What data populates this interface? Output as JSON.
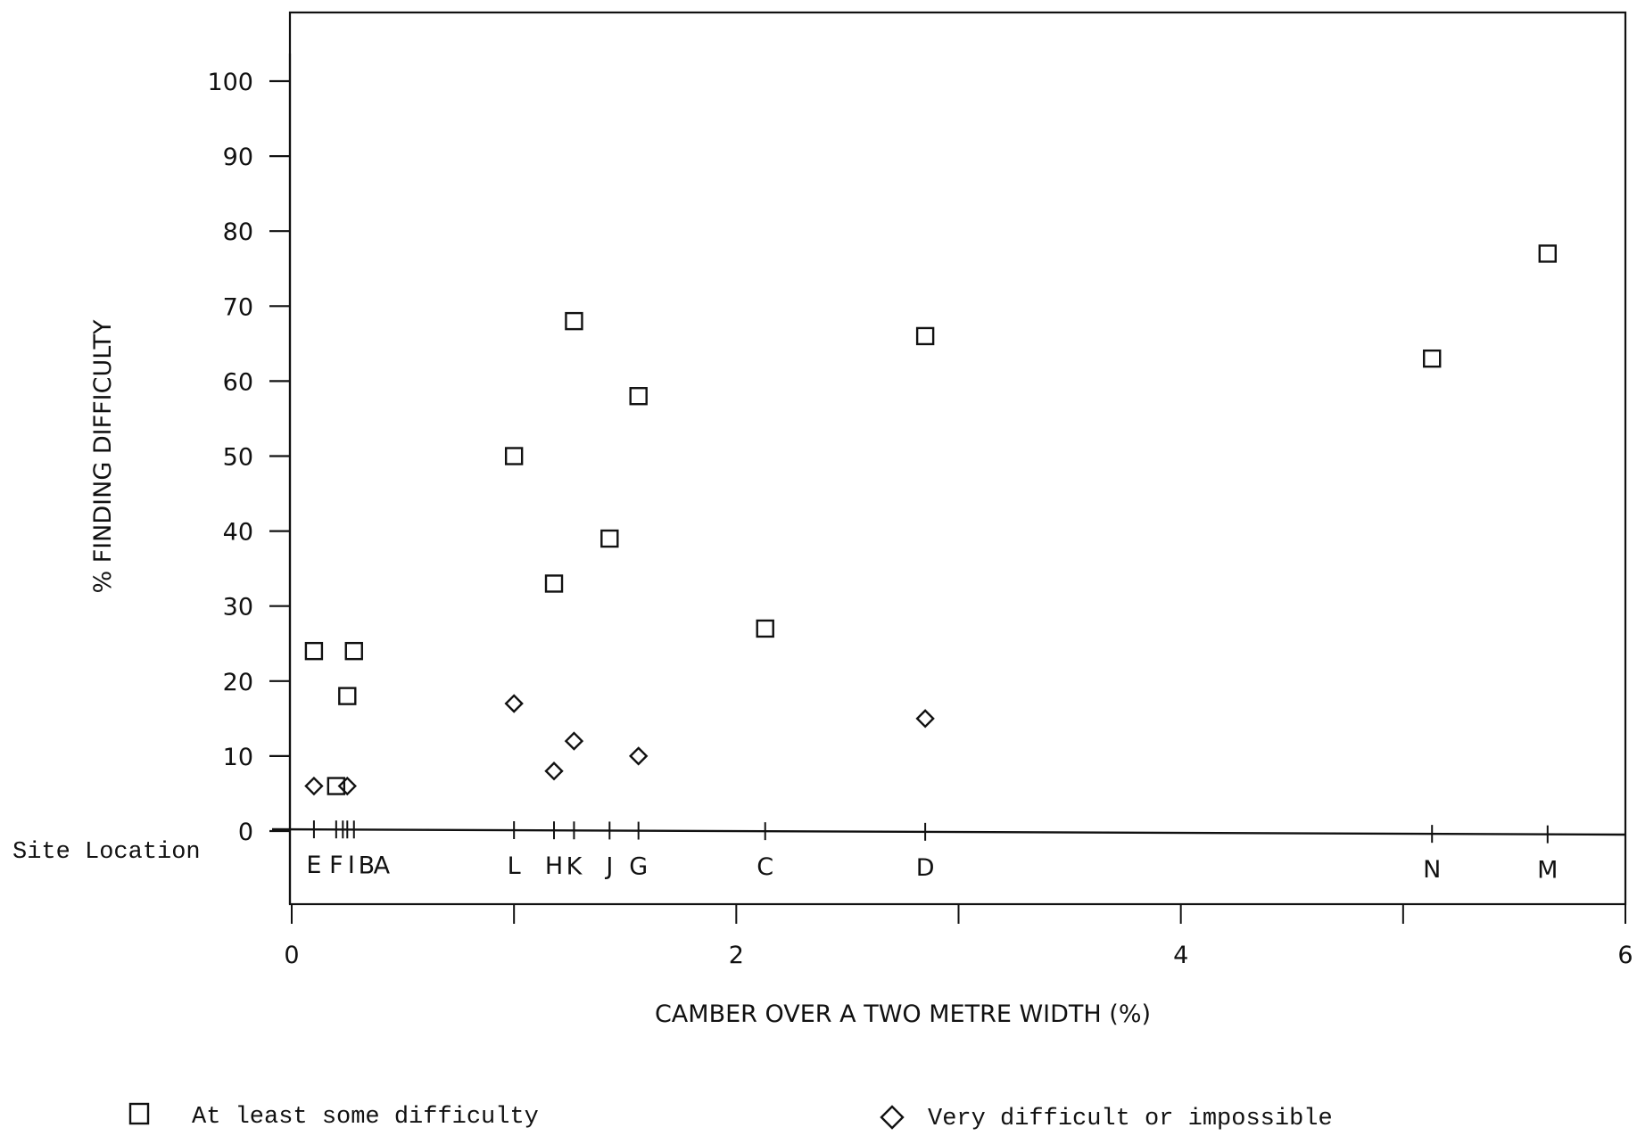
{
  "chart_data": {
    "type": "scatter",
    "title": "",
    "xlabel": "CAMBER OVER A TWO METRE WIDTH (%)",
    "ylabel": "% FINDING DIFFICULTY",
    "xlim": [
      0,
      6
    ],
    "ylim": [
      0,
      100
    ],
    "x_ticks": [
      "0",
      "2",
      "4",
      "6"
    ],
    "y_ticks": [
      "0",
      "10",
      "20",
      "30",
      "40",
      "50",
      "60",
      "70",
      "80",
      "90",
      "100"
    ],
    "site_axis_label": "Site Location",
    "grid": false,
    "legend_position": "bottom",
    "sites": [
      {
        "label": "E",
        "x": 0.1
      },
      {
        "label": "F",
        "x": 0.2
      },
      {
        "label": "I",
        "x": 0.23
      },
      {
        "label": "B",
        "x": 0.25
      },
      {
        "label": "A",
        "x": 0.28
      },
      {
        "label": "L",
        "x": 1.0
      },
      {
        "label": "H",
        "x": 1.18
      },
      {
        "label": "K",
        "x": 1.27
      },
      {
        "label": "J",
        "x": 1.43
      },
      {
        "label": "G",
        "x": 1.56
      },
      {
        "label": "C",
        "x": 2.13
      },
      {
        "label": "D",
        "x": 2.85
      },
      {
        "label": "N",
        "x": 5.13
      },
      {
        "label": "M",
        "x": 5.65
      }
    ],
    "series": [
      {
        "name": "At least some difficulty",
        "marker": "square",
        "points": [
          {
            "x": 0.1,
            "y": 24
          },
          {
            "x": 0.2,
            "y": 6
          },
          {
            "x": 0.25,
            "y": 18
          },
          {
            "x": 0.28,
            "y": 24
          },
          {
            "x": 1.0,
            "y": 50
          },
          {
            "x": 1.18,
            "y": 33
          },
          {
            "x": 1.27,
            "y": 68
          },
          {
            "x": 1.43,
            "y": 39
          },
          {
            "x": 1.56,
            "y": 58
          },
          {
            "x": 2.13,
            "y": 27
          },
          {
            "x": 2.85,
            "y": 66
          },
          {
            "x": 5.13,
            "y": 63
          },
          {
            "x": 5.65,
            "y": 77
          }
        ]
      },
      {
        "name": "Very difficult or impossible",
        "marker": "diamond",
        "points": [
          {
            "x": 0.1,
            "y": 6
          },
          {
            "x": 0.25,
            "y": 6
          },
          {
            "x": 1.0,
            "y": 17
          },
          {
            "x": 1.18,
            "y": 8
          },
          {
            "x": 1.27,
            "y": 12
          },
          {
            "x": 1.56,
            "y": 10
          },
          {
            "x": 2.85,
            "y": 15
          }
        ]
      }
    ]
  }
}
